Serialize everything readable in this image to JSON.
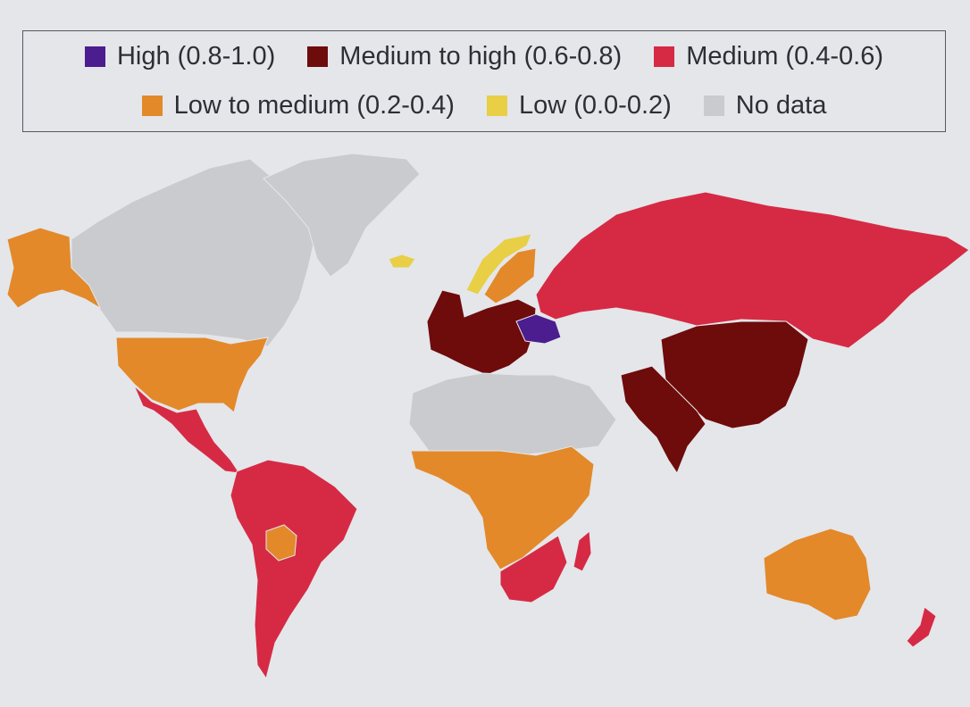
{
  "legend": {
    "items": [
      {
        "label": "High (0.8-1.0)",
        "color": "#4b1d8e"
      },
      {
        "label": "Medium to high (0.6-0.8)",
        "color": "#6e0b0b"
      },
      {
        "label": "Medium (0.4-0.6)",
        "color": "#d62a44"
      },
      {
        "label": "Low to medium (0.2-0.4)",
        "color": "#e3892a"
      },
      {
        "label": "Low (0.0-0.2)",
        "color": "#e8cf45"
      },
      {
        "label": "No data",
        "color": "#c9cbce"
      }
    ]
  },
  "map": {
    "regions": [
      {
        "name": "Canada",
        "class": "No data"
      },
      {
        "name": "Greenland",
        "class": "No data"
      },
      {
        "name": "Alaska",
        "class": "Low to medium (0.2-0.4)"
      },
      {
        "name": "United States",
        "class": "Low to medium (0.2-0.4)"
      },
      {
        "name": "Mexico",
        "class": "Medium (0.4-0.6)"
      },
      {
        "name": "South America",
        "class": "Medium (0.4-0.6)"
      },
      {
        "name": "Bolivia",
        "class": "Low to medium (0.2-0.4)"
      },
      {
        "name": "Iceland",
        "class": "Low (0.0-0.2)"
      },
      {
        "name": "Norway",
        "class": "Low (0.0-0.2)"
      },
      {
        "name": "Sweden",
        "class": "Low to medium (0.2-0.4)"
      },
      {
        "name": "Western Europe",
        "class": "Medium to high (0.6-0.8)"
      },
      {
        "name": "Ukraine",
        "class": "High (0.8-1.0)"
      },
      {
        "name": "Russia",
        "class": "Medium (0.4-0.6)"
      },
      {
        "name": "China",
        "class": "Medium to high (0.6-0.8)"
      },
      {
        "name": "India",
        "class": "Medium to high (0.6-0.8)"
      },
      {
        "name": "North Africa",
        "class": "No data"
      },
      {
        "name": "Central Africa",
        "class": "Low to medium (0.2-0.4)"
      },
      {
        "name": "Southern Africa",
        "class": "Medium (0.4-0.6)"
      },
      {
        "name": "Madagascar",
        "class": "Medium (0.4-0.6)"
      },
      {
        "name": "Australia",
        "class": "Low to medium (0.2-0.4)"
      },
      {
        "name": "New Zealand",
        "class": "Medium (0.4-0.6)"
      }
    ]
  }
}
